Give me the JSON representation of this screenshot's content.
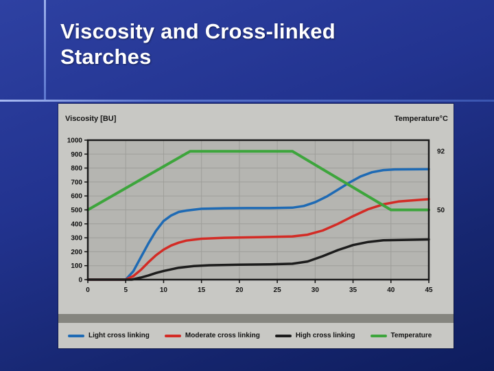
{
  "slide": {
    "title": {
      "line1": "Viscosity and Cross-linked",
      "line2": "Starches"
    }
  },
  "chart": {
    "left_axis_header": "Viscosity [BU]",
    "right_axis_header": "Temperature°C"
  },
  "chart_data": {
    "type": "line",
    "title": "Viscosity and Cross-linked Starches",
    "xlabel": "",
    "ylabel": "Viscosity [BU]",
    "y2label": "Temperature°C",
    "xlim": [
      0,
      45
    ],
    "ylim": [
      0,
      1000
    ],
    "grid": true,
    "legend_position": "bottom",
    "x_ticks": [
      0,
      5,
      10,
      15,
      20,
      25,
      30,
      35,
      40,
      45
    ],
    "y_ticks": [
      0,
      100,
      200,
      300,
      400,
      500,
      600,
      700,
      800,
      900,
      1000
    ],
    "y2_ticks": [
      {
        "label": "92",
        "value": 920
      },
      {
        "label": "50",
        "value": 500
      }
    ],
    "colors": {
      "plot_bg": "#b5b5b1",
      "grid": "#9e9e9a",
      "border": "#1a1a1a",
      "card_bg": "#c8c8c4"
    },
    "series": [
      {
        "name": "Light cross linking",
        "color": "#1e6ab4",
        "axis": "left",
        "x": [
          0,
          5,
          6,
          7,
          8,
          9,
          10,
          11,
          12,
          13,
          15,
          18,
          21,
          24,
          27,
          28.5,
          30,
          31.5,
          33,
          34.5,
          36,
          37.5,
          39,
          40.5,
          45
        ],
        "y": [
          0,
          0,
          60,
          160,
          260,
          350,
          420,
          460,
          485,
          495,
          508,
          512,
          513,
          513,
          516,
          528,
          555,
          595,
          645,
          695,
          740,
          770,
          785,
          790,
          792
        ]
      },
      {
        "name": "Moderate cross linking",
        "color": "#d32b25",
        "axis": "left",
        "x": [
          0,
          5,
          6,
          7,
          8,
          9,
          10,
          11,
          12,
          13,
          15,
          18,
          21,
          24,
          27,
          29,
          31,
          33,
          35,
          37,
          39,
          41,
          45
        ],
        "y": [
          0,
          0,
          25,
          70,
          125,
          175,
          215,
          245,
          265,
          280,
          293,
          300,
          303,
          306,
          310,
          322,
          352,
          400,
          455,
          505,
          540,
          560,
          577
        ]
      },
      {
        "name": "High cross linking",
        "color": "#1c1c1c",
        "axis": "left",
        "x": [
          0,
          5.8,
          7,
          8,
          9,
          10,
          12,
          14,
          16,
          20,
          24,
          27,
          29,
          31,
          33,
          35,
          37,
          39,
          45
        ],
        "y": [
          0,
          0,
          15,
          30,
          48,
          62,
          85,
          97,
          103,
          107,
          110,
          114,
          130,
          168,
          212,
          248,
          270,
          282,
          288
        ]
      },
      {
        "name": "Temperature",
        "color": "#3da53c",
        "axis": "right",
        "x": [
          0,
          13.5,
          27,
          40,
          45
        ],
        "y": [
          50,
          92,
          92,
          50,
          50
        ]
      }
    ]
  }
}
